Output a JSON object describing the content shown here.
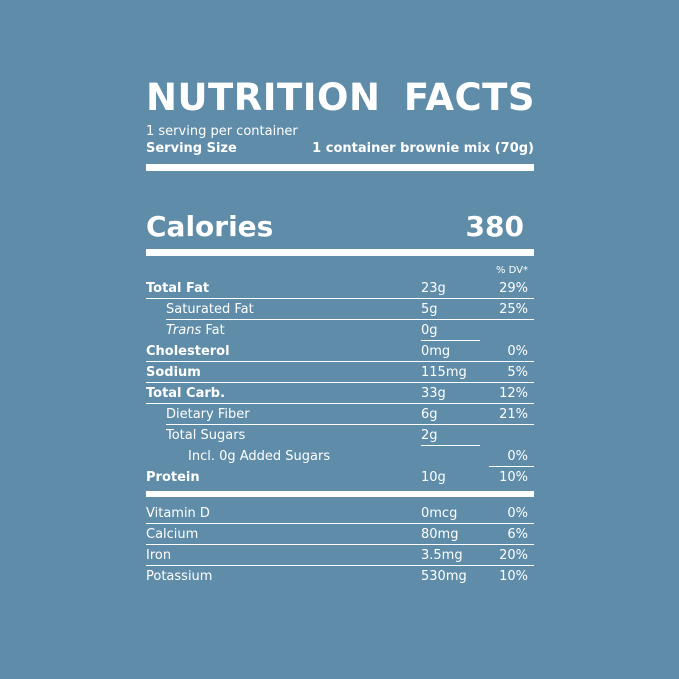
{
  "title": "NUTRITION  FACTS",
  "servings_per_container": "1 serving per container",
  "serving_size_label": "Serving Size",
  "serving_size_value": "1 container brownie mix (70g)",
  "calories_label": "Calories",
  "calories_value": "380",
  "dv_header": "% DV*",
  "nutrients": [
    {
      "label": "Total Fat",
      "amount": "23g",
      "dv": "29%"
    },
    {
      "label": "Saturated Fat",
      "amount": "5g",
      "dv": "25%"
    },
    {
      "label_italic": "Trans",
      "label_rest": " Fat",
      "amount": "0g",
      "dv": ""
    },
    {
      "label": "Cholesterol",
      "amount": "0mg",
      "dv": "0%"
    },
    {
      "label": "Sodium",
      "amount": "115mg",
      "dv": "5%"
    },
    {
      "label": "Total Carb.",
      "amount": "33g",
      "dv": "12%"
    },
    {
      "label": "Dietary Fiber",
      "amount": "6g",
      "dv": "21%"
    },
    {
      "label": "Total Sugars",
      "amount": "2g",
      "dv": ""
    },
    {
      "label": "Incl. 0g Added Sugars",
      "amount": "",
      "dv": "0%"
    },
    {
      "label": "Protein",
      "amount": "10g",
      "dv": "10%"
    }
  ],
  "vitamins": [
    {
      "label": "Vitamin D",
      "amount": "0mcg",
      "dv": "0%"
    },
    {
      "label": "Calcium",
      "amount": "80mg",
      "dv": "6%"
    },
    {
      "label": "Iron",
      "amount": "3.5mg",
      "dv": "20%"
    },
    {
      "label": "Potassium",
      "amount": "530mg",
      "dv": "10%"
    }
  ]
}
